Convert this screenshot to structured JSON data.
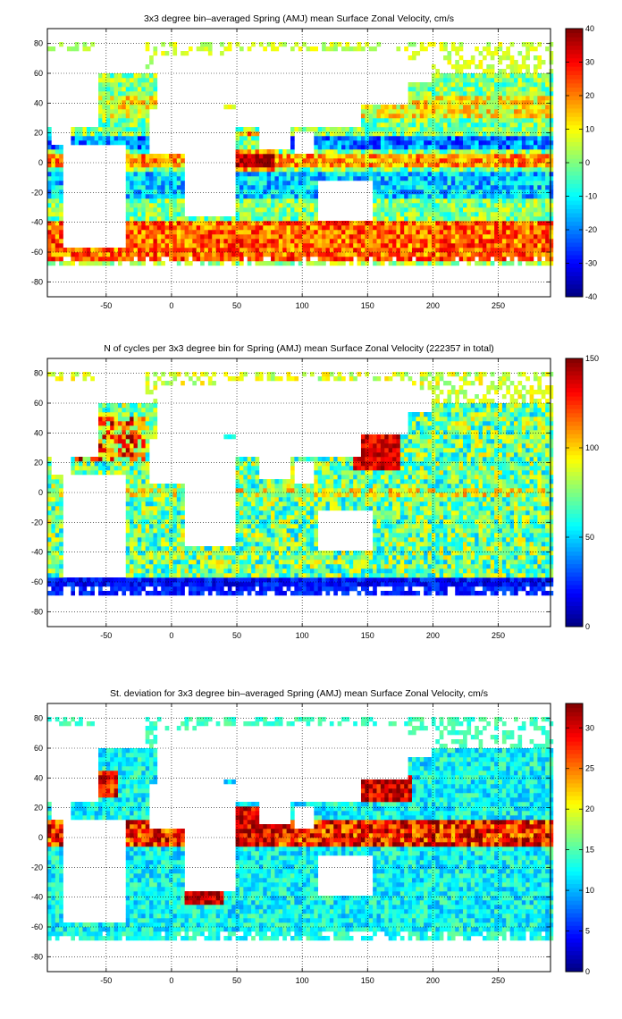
{
  "panels": [
    {
      "title": "3x3 degree bin–averaged Spring (AMJ) mean Surface Zonal Velocity, cm/s",
      "colorbar": {
        "min": -40,
        "max": 40,
        "ticks": [
          "40",
          "30",
          "20",
          "10",
          "0",
          "-10",
          "-20",
          "-30",
          "-40"
        ]
      },
      "kind": "velocity"
    },
    {
      "title": "N of cycles per 3x3 degree bin for Spring (AMJ) mean Surface Zonal Velocity (222357 in total)",
      "colorbar": {
        "min": 0,
        "max": 150,
        "ticks": [
          "150",
          "100",
          "50",
          "0"
        ]
      },
      "kind": "count"
    },
    {
      "title": "St. deviation for 3x3 degree bin–averaged Spring (AMJ) mean Surface Zonal Velocity, cm/s",
      "colorbar": {
        "min": 0,
        "max": 33,
        "ticks": [
          "30",
          "25",
          "20",
          "15",
          "10",
          "5",
          "0"
        ]
      },
      "kind": "std"
    }
  ],
  "chart_data": [
    {
      "type": "heatmap",
      "title": "3x3 degree bin–averaged Spring (AMJ) mean Surface Zonal Velocity, cm/s",
      "xlim": [
        -95,
        290
      ],
      "ylim": [
        -90,
        90
      ],
      "xticks": [
        -50,
        0,
        50,
        100,
        150,
        200,
        250
      ],
      "yticks": [
        80,
        60,
        40,
        20,
        0,
        -20,
        -40,
        -60,
        -80
      ],
      "grid": true,
      "colorbar_range": [
        -40,
        40
      ],
      "colormap": "jet"
    },
    {
      "type": "heatmap",
      "title": "N of cycles per 3x3 degree bin for Spring (AMJ) mean Surface Zonal Velocity (222357 in total)",
      "xlim": [
        -95,
        290
      ],
      "ylim": [
        -90,
        90
      ],
      "xticks": [
        -50,
        0,
        50,
        100,
        150,
        200,
        250
      ],
      "yticks": [
        80,
        60,
        40,
        20,
        0,
        -20,
        -40,
        -60,
        -80
      ],
      "grid": true,
      "colorbar_range": [
        0,
        150
      ],
      "total": 222357,
      "colormap": "jet"
    },
    {
      "type": "heatmap",
      "title": "St. deviation for 3x3 degree bin–averaged Spring (AMJ) mean Surface Zonal Velocity, cm/s",
      "xlim": [
        -95,
        290
      ],
      "ylim": [
        -90,
        90
      ],
      "xticks": [
        -50,
        0,
        50,
        100,
        150,
        200,
        250
      ],
      "yticks": [
        80,
        60,
        40,
        20,
        0,
        -20,
        -40,
        -60,
        -80
      ],
      "grid": true,
      "colorbar_range": [
        0,
        33
      ],
      "colormap": "jet"
    }
  ]
}
